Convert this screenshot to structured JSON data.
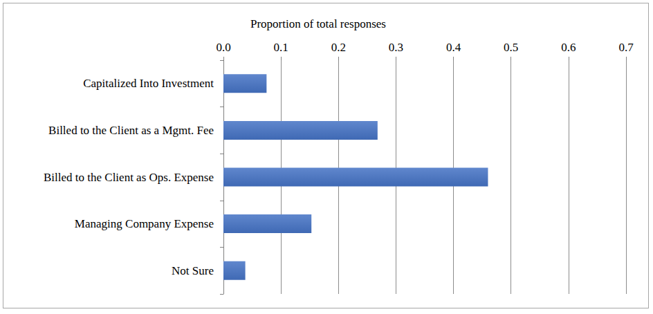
{
  "chart_data": {
    "type": "bar",
    "orientation": "horizontal",
    "xlabel": "Proportion of total responses",
    "categories": [
      "Capitalized Into Investment",
      "Billed to the Client as a Mgmt. Fee",
      "Billed to the Client as Ops. Expense",
      "Managing Company Expense",
      "Not Sure"
    ],
    "values": [
      0.075,
      0.268,
      0.46,
      0.153,
      0.038
    ],
    "color": "#4472c4",
    "xlim": [
      0,
      0.7
    ],
    "xticks": [
      {
        "value": 0,
        "label": "0.0"
      },
      0.1,
      0.2,
      0.3,
      0.4,
      0.5,
      0.6,
      0.7
    ],
    "grid": true
  }
}
